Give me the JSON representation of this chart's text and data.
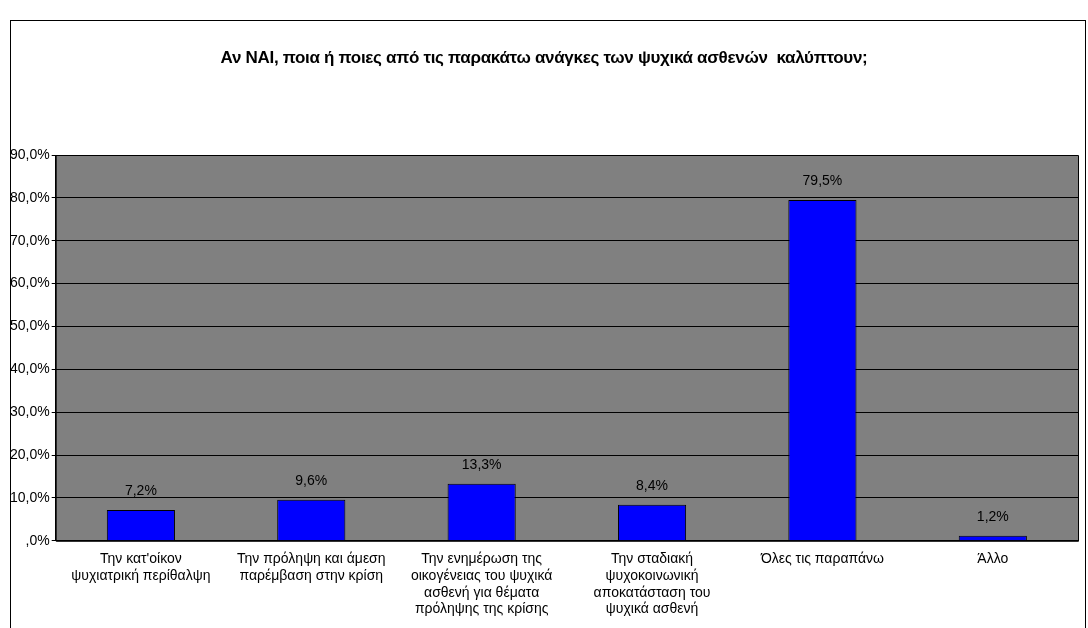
{
  "chart_data": {
    "type": "bar",
    "title": "Αν ΝΑΙ, ποια ή ποιες από τις παρακάτω ανάγκες των ψυχικά ασθενών  καλύπτουν;",
    "categories": [
      "Την κατ'οίκον ψυχιατρική περίθαλψη",
      "Την πρόληψη και άμεση παρέμβαση στην κρίση",
      "Την ενημέρωση της οικογένειας του ψυχικά ασθενή για θέματα πρόληψης της κρίσης",
      "Την σταδιακή ψυχοκοινωνική αποκατάσταση του ψυχικά ασθενή",
      "Όλες τις παραπάνω",
      "Άλλο"
    ],
    "values": [
      7.2,
      9.6,
      13.3,
      8.4,
      79.5,
      1.2
    ],
    "value_labels": [
      "7,2%",
      "9,6%",
      "13,3%",
      "8,4%",
      "79,5%",
      "1,2%"
    ],
    "color": "#0000ff",
    "ylim": [
      0,
      90
    ],
    "yticks": [
      {
        "value": 0,
        "label": ",0%"
      },
      {
        "value": 10,
        "label": "10,0%"
      },
      {
        "value": 20,
        "label": "20,0%"
      },
      {
        "value": 30,
        "label": "30,0%"
      },
      {
        "value": 40,
        "label": "40,0%"
      },
      {
        "value": 50,
        "label": "50,0%"
      },
      {
        "value": 60,
        "label": "60,0%"
      },
      {
        "value": 70,
        "label": "70,0%"
      },
      {
        "value": 80,
        "label": "80,0%"
      },
      {
        "value": 90,
        "label": "90,0%"
      }
    ],
    "grid": "y",
    "legend": false
  }
}
